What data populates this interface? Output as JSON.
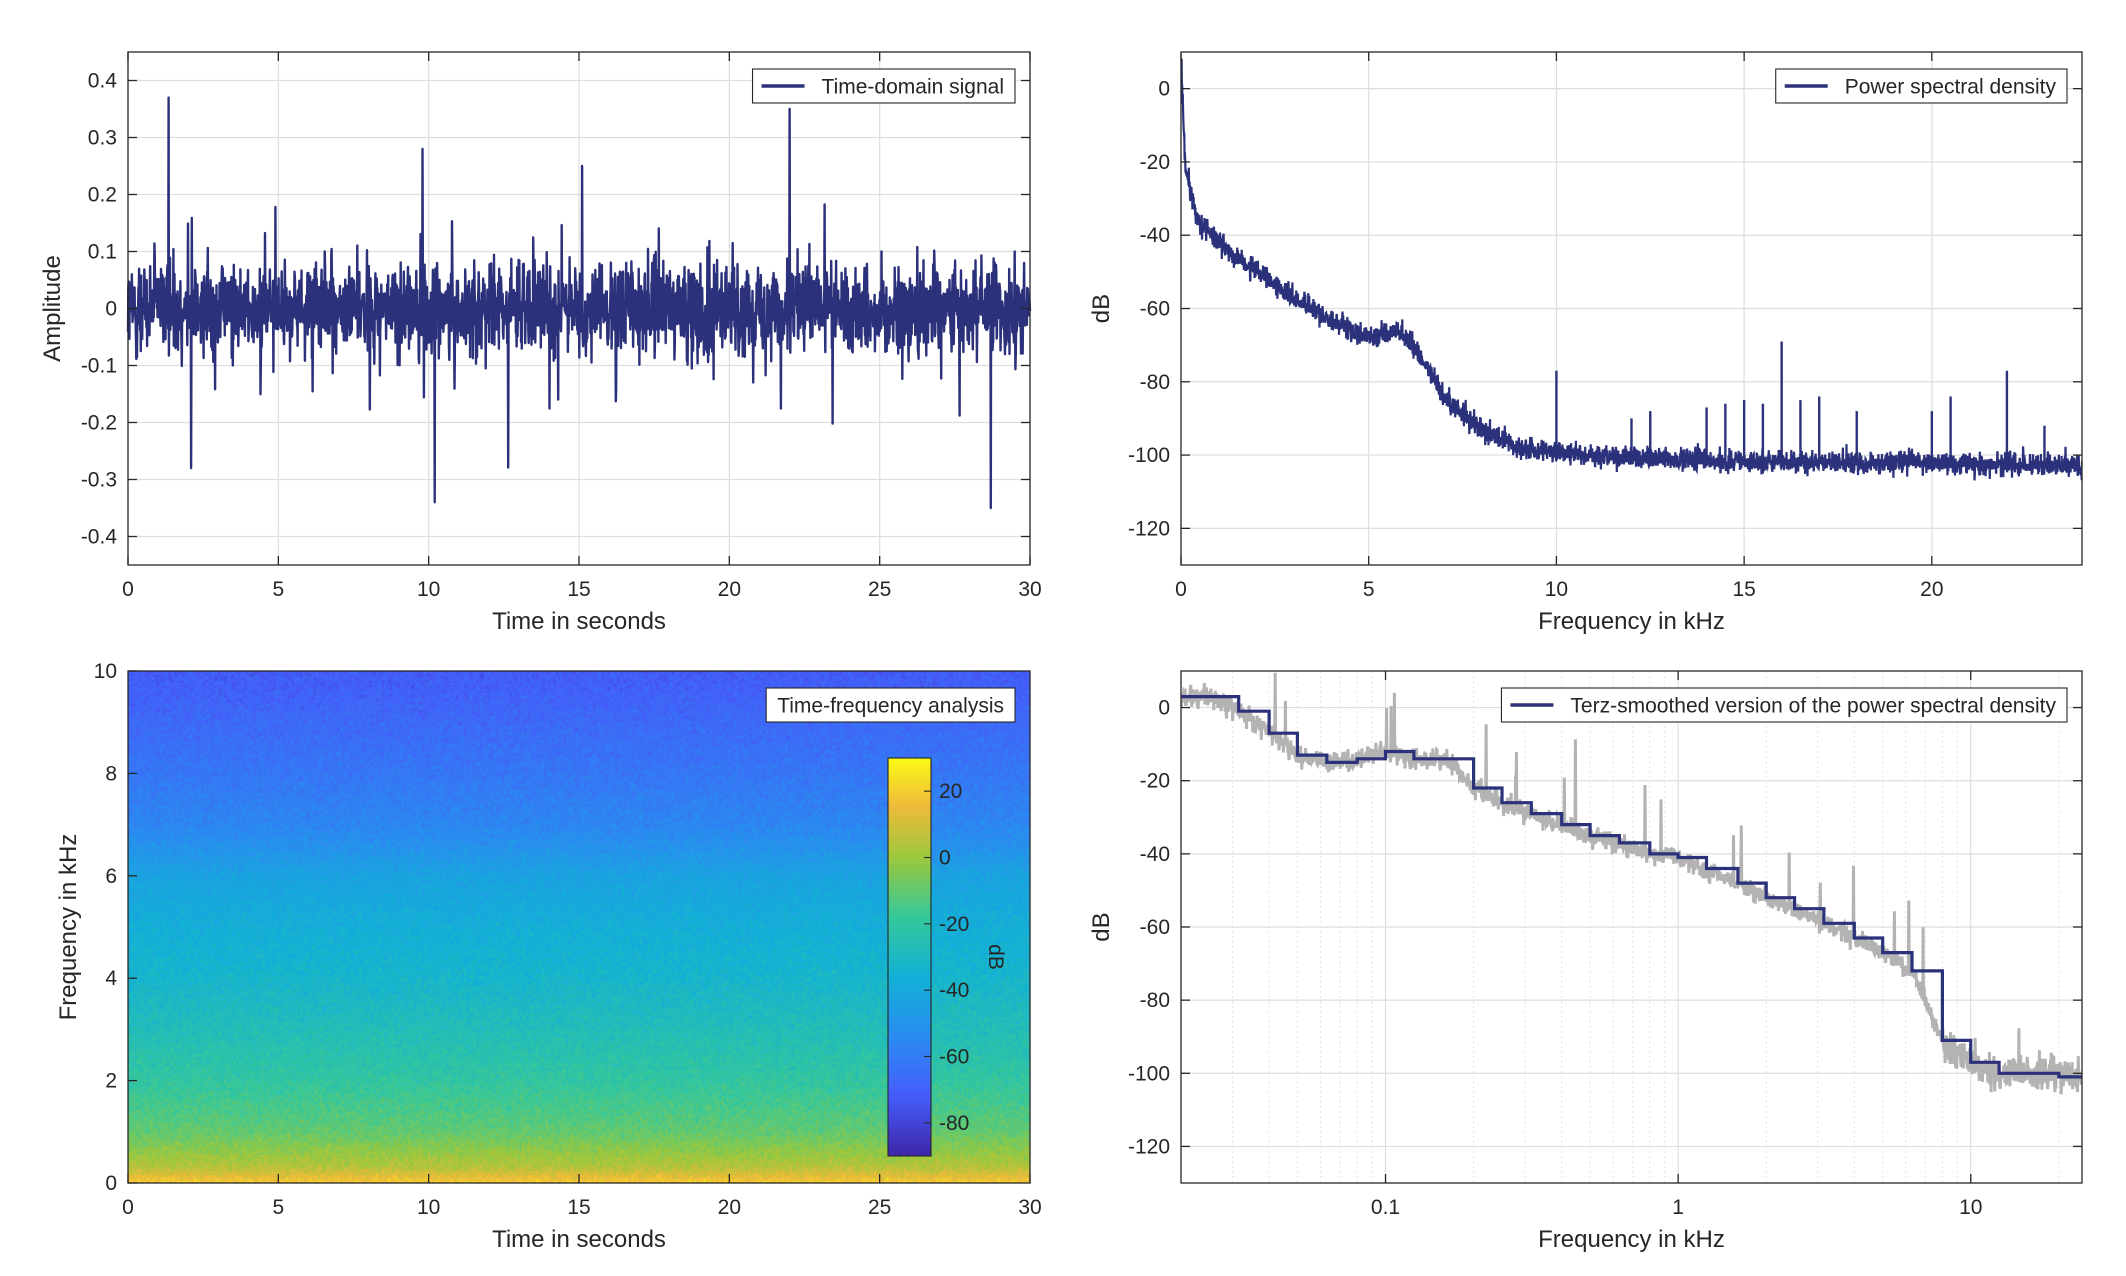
{
  "colors": {
    "signal": "#2b317a",
    "raw_psd": "#b3b3b3",
    "grid": "#dedede",
    "axes": "#262626"
  },
  "chart_data": [
    {
      "id": "time-domain",
      "type": "line",
      "xlabel": "Time in seconds",
      "ylabel": "Amplitude",
      "xlim": [
        0,
        30
      ],
      "ylim": [
        -0.45,
        0.45
      ],
      "xticks": [
        0,
        5,
        10,
        15,
        20,
        25,
        30
      ],
      "yticks": [
        -0.4,
        -0.3,
        -0.2,
        -0.1,
        0,
        0.1,
        0.2,
        0.3,
        0.4
      ],
      "xtick_labels": [
        "0",
        "5",
        "10",
        "15",
        "20",
        "25",
        "30"
      ],
      "ytick_labels": [
        "-0.4",
        "-0.3",
        "-0.2",
        "-0.1",
        "0",
        "0.1",
        "0.2",
        "0.3",
        "0.4"
      ],
      "grid": true,
      "legend": "top-right",
      "series": [
        {
          "name": "Time-domain signal",
          "color": "#2b317a",
          "noise_band": [
            -0.2,
            0.2
          ],
          "peaks": [
            {
              "x": 1.35,
              "y": 0.37
            },
            {
              "x": 10.2,
              "y": 0.31
            },
            {
              "x": 22.0,
              "y": 0.35
            },
            {
              "x": 10.2,
              "y": -0.34
            },
            {
              "x": 28.7,
              "y": -0.35
            },
            {
              "x": 2.1,
              "y": -0.28
            },
            {
              "x": 9.8,
              "y": 0.28
            },
            {
              "x": 15.1,
              "y": 0.25
            }
          ]
        }
      ]
    },
    {
      "id": "psd",
      "type": "line",
      "xlabel": "Frequency in kHz",
      "ylabel": "dB",
      "xlim": [
        0,
        24
      ],
      "ylim": [
        -130,
        10
      ],
      "xticks": [
        0,
        5,
        10,
        15,
        20
      ],
      "yticks": [
        -120,
        -100,
        -80,
        -60,
        -40,
        -20,
        0
      ],
      "xtick_labels": [
        "0",
        "5",
        "10",
        "15",
        "20"
      ],
      "ytick_labels": [
        "-120",
        "-100",
        "-80",
        "-60",
        "-40",
        "-20",
        "0"
      ],
      "grid": true,
      "legend": "top-right",
      "series": [
        {
          "name": "Power spectral density",
          "color": "#2b317a",
          "envelope": [
            {
              "x": 0,
              "y": 10
            },
            {
              "x": 0.1,
              "y": -20
            },
            {
              "x": 0.4,
              "y": -35
            },
            {
              "x": 1,
              "y": -42
            },
            {
              "x": 2,
              "y": -50
            },
            {
              "x": 3,
              "y": -57
            },
            {
              "x": 4,
              "y": -63
            },
            {
              "x": 5,
              "y": -68
            },
            {
              "x": 5.8,
              "y": -66
            },
            {
              "x": 6.3,
              "y": -72
            },
            {
              "x": 7,
              "y": -84
            },
            {
              "x": 8,
              "y": -93
            },
            {
              "x": 9,
              "y": -98
            },
            {
              "x": 11,
              "y": -100
            },
            {
              "x": 15,
              "y": -102
            },
            {
              "x": 20,
              "y": -102
            },
            {
              "x": 24,
              "y": -103
            }
          ],
          "spikes": [
            {
              "x": 10.0,
              "y": -77
            },
            {
              "x": 12.0,
              "y": -90
            },
            {
              "x": 12.5,
              "y": -88
            },
            {
              "x": 14.0,
              "y": -87
            },
            {
              "x": 14.5,
              "y": -86
            },
            {
              "x": 15.0,
              "y": -85
            },
            {
              "x": 15.5,
              "y": -86
            },
            {
              "x": 16.0,
              "y": -69
            },
            {
              "x": 16.5,
              "y": -85
            },
            {
              "x": 17.0,
              "y": -84
            },
            {
              "x": 18.0,
              "y": -88
            },
            {
              "x": 20.0,
              "y": -88
            },
            {
              "x": 20.5,
              "y": -84
            },
            {
              "x": 22.0,
              "y": -77
            },
            {
              "x": 23.0,
              "y": -92
            }
          ]
        }
      ]
    },
    {
      "id": "spectrogram",
      "type": "heatmap",
      "xlabel": "Time in seconds",
      "ylabel": "Frequency in kHz",
      "xlim": [
        0,
        30
      ],
      "ylim": [
        0,
        10
      ],
      "xticks": [
        0,
        5,
        10,
        15,
        20,
        25,
        30
      ],
      "yticks": [
        0,
        2,
        4,
        6,
        8,
        10
      ],
      "xtick_labels": [
        "0",
        "5",
        "10",
        "15",
        "20",
        "25",
        "30"
      ],
      "ytick_labels": [
        "0",
        "2",
        "4",
        "6",
        "8",
        "10"
      ],
      "legend": "top-right",
      "legend_label": "Time-frequency analysis",
      "colorbar": {
        "label": "dB",
        "range": [
          -90,
          30
        ],
        "ticks": [
          20,
          0,
          -20,
          -40,
          -60,
          -80
        ],
        "tick_labels": [
          "20",
          "0",
          "-20",
          "-40",
          "-60",
          "-80"
        ],
        "colormap": "parula"
      },
      "level_profile": [
        {
          "f": 0,
          "db": 20
        },
        {
          "f": 0.3,
          "db": 5
        },
        {
          "f": 1,
          "db": -10
        },
        {
          "f": 2,
          "db": -20
        },
        {
          "f": 3,
          "db": -27
        },
        {
          "f": 4,
          "db": -33
        },
        {
          "f": 5,
          "db": -37
        },
        {
          "f": 6,
          "db": -43
        },
        {
          "f": 6.5,
          "db": -50
        },
        {
          "f": 7,
          "db": -56
        },
        {
          "f": 8,
          "db": -62
        },
        {
          "f": 9,
          "db": -67
        },
        {
          "f": 10,
          "db": -72
        }
      ]
    },
    {
      "id": "terz-psd",
      "type": "line",
      "xlabel": "Frequency in kHz",
      "ylabel": "dB",
      "xscale": "log",
      "xlim": [
        0.02,
        24
      ],
      "ylim": [
        -130,
        10
      ],
      "xticks": [
        0.1,
        1,
        10
      ],
      "yticks": [
        -120,
        -100,
        -80,
        -60,
        -40,
        -20,
        0
      ],
      "xtick_labels": [
        "0.1",
        "1",
        "10"
      ],
      "ytick_labels": [
        "-120",
        "-100",
        "-80",
        "-60",
        "-40",
        "-20",
        "0"
      ],
      "grid": true,
      "legend": "top-right",
      "series": [
        {
          "name": "Terz-smoothed version of the power spectral density",
          "color": "#2b317a",
          "x": [
            0.02,
            0.025,
            0.0315,
            0.04,
            0.05,
            0.063,
            0.08,
            0.1,
            0.125,
            0.16,
            0.2,
            0.25,
            0.315,
            0.4,
            0.5,
            0.63,
            0.8,
            1,
            1.25,
            1.6,
            2,
            2.5,
            3.15,
            4,
            5,
            6.3,
            8,
            10,
            12.5,
            16,
            20,
            24
          ],
          "y": [
            3,
            3,
            -1,
            -7,
            -13,
            -15,
            -14,
            -12,
            -14,
            -14,
            -22,
            -26,
            -29,
            -32,
            -35,
            -37,
            -40,
            -41,
            -44,
            -48,
            -52,
            -55,
            -59,
            -63,
            -67,
            -72,
            -91,
            -97,
            -100,
            -100,
            -101,
            -101
          ]
        },
        {
          "color": "#b3b3b3",
          "raw": true
        }
      ]
    }
  ]
}
